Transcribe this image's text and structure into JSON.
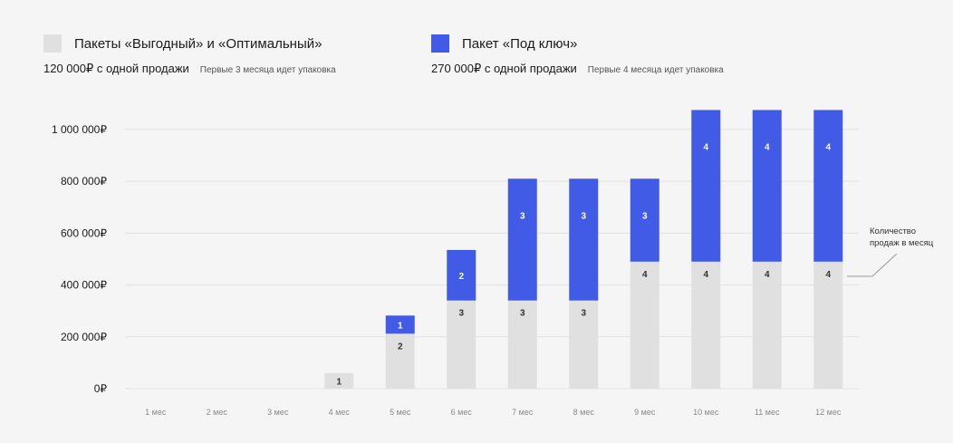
{
  "legend": {
    "gray": {
      "name": "Пакеты «Выгодный» и «Оптимальный»",
      "price": "120 000₽ с одной продажи",
      "note": "Первые 3 месяца идет упаковка",
      "color": "#e0e0e0"
    },
    "blue": {
      "name": "Пакет «Под ключ»",
      "price": "270 000₽ с одной продажи",
      "note": "Первые 4 месяца идет упаковка",
      "color": "#415be6"
    }
  },
  "annotation": {
    "line1": "Количество",
    "line2": "продаж в месяц"
  },
  "chart_data": {
    "type": "bar",
    "stacked": true,
    "categories": [
      "1 мес",
      "2 мес",
      "3 мес",
      "4 мес",
      "5 мес",
      "6 мес",
      "7 мес",
      "8 мес",
      "9 мес",
      "10 мес",
      "11 мес",
      "12 мес"
    ],
    "ylim": [
      0,
      1080000
    ],
    "yticks": [
      {
        "value": 0,
        "label": "0₽"
      },
      {
        "value": 200000,
        "label": "200 000₽"
      },
      {
        "value": 400000,
        "label": "400 000₽"
      },
      {
        "value": 600000,
        "label": "600 000₽"
      },
      {
        "value": 800000,
        "label": "800 000₽"
      },
      {
        "value": 1000000,
        "label": "1 000 000₽"
      }
    ],
    "grid": true,
    "series": [
      {
        "name": "Пакеты «Выгодный» и «Оптимальный»",
        "color": "#e0e0e0",
        "label_color": "#333333",
        "unit_value": 120000,
        "counts": [
          0,
          0,
          0,
          1,
          2,
          3,
          3,
          3,
          4,
          4,
          4,
          4
        ],
        "values": [
          0,
          0,
          0,
          60000,
          212000,
          340000,
          340000,
          340000,
          490000,
          490000,
          490000,
          490000
        ]
      },
      {
        "name": "Пакет «Под ключ»",
        "color": "#415be6",
        "label_color": "#ffffff",
        "unit_value": 270000,
        "counts": [
          0,
          0,
          0,
          0,
          1,
          2,
          3,
          3,
          3,
          4,
          4,
          4
        ],
        "values": [
          0,
          0,
          0,
          0,
          70000,
          195000,
          470000,
          470000,
          320000,
          585000,
          585000,
          585000
        ]
      }
    ]
  }
}
